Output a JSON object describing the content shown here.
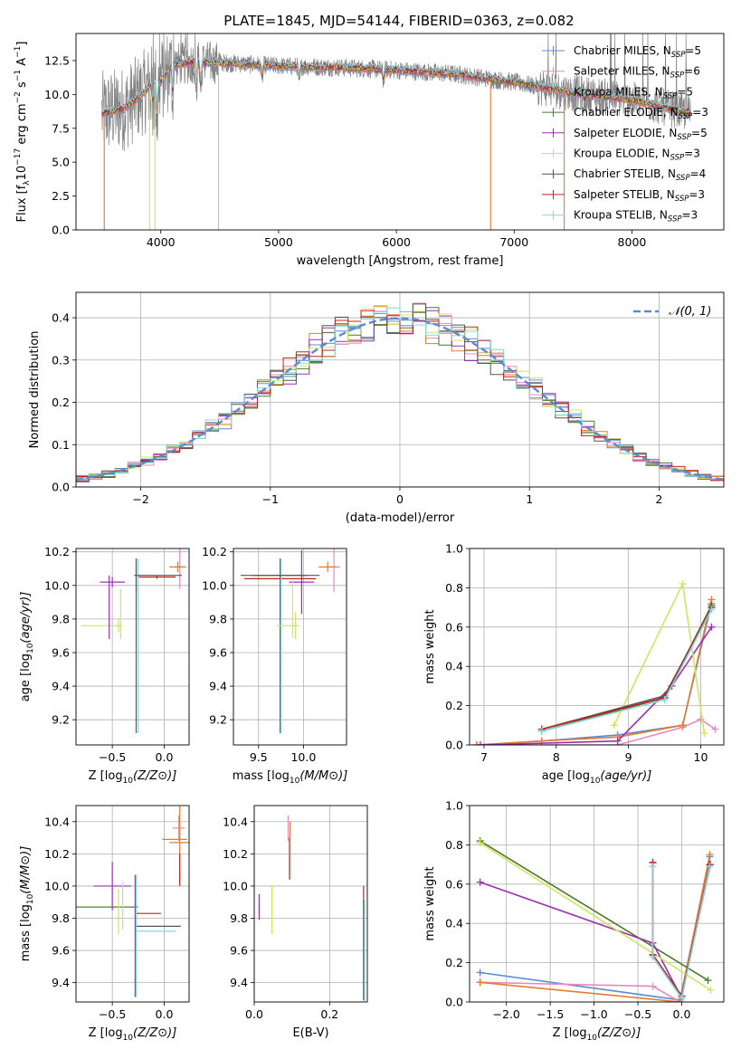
{
  "title": "PLATE=1845, MJD=54144, FIBERID=0363, z=0.082",
  "series": [
    {
      "name": "Chabrier MILES, N$_{SSP}$=5",
      "label": "Chabrier MILES, N",
      "sub": "SSP",
      "n": "=5",
      "color": "#5b8bd0",
      "w": 0.8
    },
    {
      "name": "Salpeter MILES, N$_{SSP}$=6",
      "label": "Salpeter MILES, N",
      "sub": "SSP",
      "n": "=6",
      "color": "#e88ac0",
      "w": 0.8
    },
    {
      "name": "Kroupa MILES, N$_{SSP}$=5",
      "label": "Kroupa MILES, N",
      "sub": "SSP",
      "n": "=5",
      "color": "#e87a2e",
      "w": 0.8
    },
    {
      "name": "Chabrier ELODIE, N$_{SSP}$=3",
      "label": "Chabrier ELODIE, N",
      "sub": "SSP",
      "n": "=3",
      "color": "#4c7a2c",
      "w": 0.8
    },
    {
      "name": "Salpeter ELODIE, N$_{SSP}$=5",
      "label": "Salpeter ELODIE, N",
      "sub": "SSP",
      "n": "=5",
      "color": "#9b2fb0",
      "w": 0.8
    },
    {
      "name": "Kroupa ELODIE, N$_{SSP}$=3",
      "label": "Kroupa ELODIE, N",
      "sub": "SSP",
      "n": "=3",
      "color": "#cde860",
      "w": 0.8
    },
    {
      "name": "Chabrier STELIB, N$_{SSP}$=4",
      "label": "Chabrier STELIB, N",
      "sub": "SSP",
      "n": "=4",
      "color": "#555555",
      "w": 0.8
    },
    {
      "name": "Salpeter STELIB, N$_{SSP}$=3",
      "label": "Salpeter STELIB, N",
      "sub": "SSP",
      "n": "=3",
      "color": "#c0241c",
      "w": 0.8
    },
    {
      "name": "Kroupa STELIB, N$_{SSP}$=3",
      "label": "Kroupa STELIB, N",
      "sub": "SSP",
      "n": "=3",
      "color": "#86d4e0",
      "w": 0.8
    }
  ],
  "chart_data": [
    {
      "type": "line",
      "title": "PLATE=1845, MJD=54144, FIBERID=0363, z=0.082",
      "xlabel": "wavelength [Angstrom, rest frame]",
      "ylabel": "Flux [f",
      "ylabel_full": "Flux [f_λ 10^-17 erg cm^-2 s^-1 A^-1]",
      "xlim": [
        3280,
        8780
      ],
      "ylim": [
        0,
        14.5
      ],
      "xticks": [
        4000,
        5000,
        6000,
        7000,
        8000
      ],
      "yticks": [
        0.0,
        2.5,
        5.0,
        7.5,
        10.0,
        12.5
      ],
      "xtick_labels": [
        "4000",
        "5000",
        "6000",
        "7000",
        "8000"
      ],
      "ytick_labels": [
        "0.0",
        "2.5",
        "5.0",
        "7.5",
        "10.0",
        "12.5"
      ],
      "data_range": [
        3500,
        8500
      ],
      "continuum": [
        [
          3500,
          8.6
        ],
        [
          3700,
          9.0
        ],
        [
          3900,
          10.5
        ],
        [
          4000,
          11.0
        ],
        [
          4100,
          12.2
        ],
        [
          4300,
          12.4
        ],
        [
          4600,
          12.3
        ],
        [
          5000,
          12.1
        ],
        [
          5500,
          12.0
        ],
        [
          6000,
          11.8
        ],
        [
          6500,
          11.5
        ],
        [
          7000,
          10.9
        ],
        [
          7500,
          10.1
        ],
        [
          8000,
          9.6
        ],
        [
          8500,
          8.6
        ]
      ],
      "dips": [
        [
          3934,
          9.2
        ],
        [
          3969,
          8.0
        ],
        [
          4102,
          9.5
        ],
        [
          4300,
          10.0
        ],
        [
          4340,
          10.3
        ],
        [
          4861,
          11.1
        ],
        [
          5175,
          10.9
        ],
        [
          5890,
          10.9
        ],
        [
          6563,
          11.5
        ],
        [
          7600,
          9.5
        ]
      ],
      "legend": "top-right",
      "grid": false
    },
    {
      "type": "line",
      "xlabel": "(data-model)/error",
      "ylabel": "Normed distribution",
      "xlim": [
        -2.5,
        2.5
      ],
      "ylim": [
        0,
        0.46
      ],
      "xticks": [
        -2,
        -1,
        0,
        1,
        2
      ],
      "yticks": [
        0.0,
        0.1,
        0.2,
        0.3,
        0.4
      ],
      "xtick_labels": [
        "−2",
        "−1",
        "0",
        "1",
        "2"
      ],
      "ytick_labels": [
        "0.0",
        "0.1",
        "0.2",
        "0.3",
        "0.4"
      ],
      "bins": 50,
      "gaussian": {
        "name": "N(0,1)",
        "mu": 0,
        "sigma": 1,
        "color": "#5b8bd0"
      },
      "legend": "top-right",
      "grid": true
    },
    {
      "type": "scatter",
      "xlabel": "Z [log",
      "xlabel_full": "Z [log10(Z/Z⊙)]",
      "ylabel": "age  [log",
      "ylabel_full": "age  [log10(age/yr)]",
      "xlim": [
        -0.85,
        0.24
      ],
      "ylim": [
        9.05,
        10.22
      ],
      "xticks": [
        -0.5,
        0.0
      ],
      "yticks": [
        9.2,
        9.4,
        9.6,
        9.8,
        10.0,
        10.2
      ],
      "xtick_labels": [
        "−0.5",
        "0.0"
      ],
      "ytick_labels": [
        "9.2",
        "9.4",
        "9.6",
        "9.8",
        "10.0",
        "10.2"
      ],
      "points": [
        {
          "s": 0,
          "x": -0.27,
          "xe": 0.0,
          "y": 9.76,
          "ye": 0.0
        },
        {
          "s": 1,
          "x": 0.15,
          "xe": 0.05,
          "y": 10.11,
          "ye": 0.13
        },
        {
          "s": 2,
          "x": 0.13,
          "xe": 0.08,
          "y": 10.11,
          "ye": 0.03
        },
        {
          "s": 3,
          "x": -0.27,
          "xe": 0.0,
          "y": 10.06,
          "ye": 0.1
        },
        {
          "s": 4,
          "x": -0.5,
          "xe": 0.12,
          "y": 10.02,
          "ye": 0.03
        },
        {
          "s": 5,
          "x": -0.44,
          "xe": 0.03,
          "y": 9.76,
          "ye": 0.04
        },
        {
          "s": 6,
          "x": -0.27,
          "xe": 0.0,
          "y": 9.64,
          "ye": 0.52
        },
        {
          "s": 7,
          "x": -0.07,
          "xe": 0.18,
          "y": 10.05,
          "ye": 0.01
        },
        {
          "s": 8,
          "x": -0.27,
          "xe": 0.0,
          "y": 9.76,
          "ye": 0.0
        },
        {
          "s": 5,
          "x": -0.6,
          "xe": 0.2,
          "y": 9.76,
          "ye": 0.0
        },
        {
          "s": 4,
          "x": -0.53,
          "xe": 0.0,
          "y": 9.87,
          "ye": 0.19
        },
        {
          "s": 3,
          "x": -0.68,
          "xe": 0.0,
          "y": 9.76,
          "ye": 0.0
        },
        {
          "s": 5,
          "x": -0.42,
          "xe": 0.0,
          "y": 9.83,
          "ye": 0.15
        },
        {
          "s": 8,
          "x": -0.25,
          "xe": 0.0,
          "y": 9.64,
          "ye": 0.52
        },
        {
          "s": 6,
          "x": -0.06,
          "xe": 0.23,
          "y": 10.06,
          "ye": 0.0
        }
      ],
      "grid": true
    },
    {
      "type": "scatter",
      "xlabel": "mass [log",
      "xlabel_full": "mass [log10(M/M⊙)]",
      "ylabel": "",
      "xlim": [
        9.22,
        10.48
      ],
      "ylim": [
        9.05,
        10.22
      ],
      "xticks": [
        9.5,
        10.0
      ],
      "yticks": [
        9.2,
        9.4,
        9.6,
        9.8,
        10.0,
        10.2
      ],
      "xtick_labels": [
        "9.5",
        "10.0"
      ],
      "ytick_labels": [
        "9.2",
        "9.4",
        "9.6",
        "9.8",
        "10.0",
        "10.2"
      ],
      "points": [
        {
          "s": 0,
          "x": 9.74,
          "xe": 0.0,
          "y": 9.64,
          "ye": 0.52
        },
        {
          "s": 1,
          "x": 10.34,
          "xe": 0.07,
          "y": 10.11,
          "ye": 0.15
        },
        {
          "s": 2,
          "x": 10.27,
          "xe": 0.1,
          "y": 10.11,
          "ye": 0.03
        },
        {
          "s": 3,
          "x": 9.74,
          "xe": 0.0,
          "y": 9.64,
          "ye": 0.52
        },
        {
          "s": 4,
          "x": 9.98,
          "xe": 0.02,
          "y": 10.02,
          "ye": 0.19
        },
        {
          "s": 5,
          "x": 9.91,
          "xe": 0.04,
          "y": 9.76,
          "ye": 0.08
        },
        {
          "s": 6,
          "x": 9.74,
          "xe": 0.44,
          "y": 10.06,
          "ye": 0.01
        },
        {
          "s": 7,
          "x": 9.74,
          "xe": 0.4,
          "y": 10.04,
          "ye": 0.0
        },
        {
          "s": 8,
          "x": 9.75,
          "xe": 0.0,
          "y": 9.64,
          "ye": 0.52
        },
        {
          "s": 4,
          "x": 9.98,
          "xe": 0.14,
          "y": 10.02,
          "ye": 0.0
        },
        {
          "s": 5,
          "x": 9.82,
          "xe": 0.12,
          "y": 9.76,
          "ye": 0.0
        },
        {
          "s": 6,
          "x": 9.74,
          "xe": 0.3,
          "y": 10.06,
          "ye": 0.0
        },
        {
          "s": 5,
          "x": 9.88,
          "xe": 0.0,
          "y": 9.86,
          "ye": 0.17
        },
        {
          "s": 3,
          "x": 9.92,
          "xe": 0.0,
          "y": 9.76,
          "ye": 0.0
        }
      ],
      "grid": true
    },
    {
      "type": "line",
      "xlabel": "age  [log",
      "xlabel_full": "age  [log10(age/yr)]",
      "ylabel": "mass weight",
      "xlim": [
        6.8,
        10.32
      ],
      "ylim": [
        0,
        1.0
      ],
      "xticks": [
        7,
        8,
        9,
        10
      ],
      "yticks": [
        0.0,
        0.2,
        0.4,
        0.6,
        0.8,
        1.0
      ],
      "xtick_labels": [
        "7",
        "8",
        "9",
        "10"
      ],
      "ytick_labels": [
        "0.0",
        "0.2",
        "0.4",
        "0.6",
        "0.8",
        "1.0"
      ],
      "lines": [
        {
          "s": 0,
          "x": [
            6.9,
            7.8,
            8.85,
            9.75,
            10.15
          ],
          "y": [
            0.0,
            0.02,
            0.05,
            0.1,
            0.72
          ]
        },
        {
          "s": 1,
          "x": [
            6.9,
            8.85,
            9.75,
            10.0,
            10.2
          ],
          "y": [
            0.0,
            0.0,
            0.09,
            0.13,
            0.08
          ]
        },
        {
          "s": 2,
          "x": [
            6.9,
            7.8,
            8.85,
            9.75,
            10.15
          ],
          "y": [
            0.0,
            0.02,
            0.04,
            0.1,
            0.74
          ]
        },
        {
          "s": 3,
          "x": [
            7.8,
            9.5,
            10.15
          ],
          "y": [
            0.07,
            0.24,
            0.71
          ]
        },
        {
          "s": 4,
          "x": [
            6.95,
            8.85,
            9.6,
            10.15
          ],
          "y": [
            0.0,
            0.02,
            0.3,
            0.6
          ]
        },
        {
          "s": 5,
          "x": [
            8.8,
            9.75,
            10.05
          ],
          "y": [
            0.1,
            0.82,
            0.06
          ]
        },
        {
          "s": 6,
          "x": [
            7.8,
            9.5,
            10.15
          ],
          "y": [
            0.08,
            0.25,
            0.7
          ]
        },
        {
          "s": 7,
          "x": [
            7.8,
            9.5,
            10.15
          ],
          "y": [
            0.08,
            0.24,
            0.7
          ]
        },
        {
          "s": 8,
          "x": [
            7.8,
            9.5,
            10.15
          ],
          "y": [
            0.07,
            0.23,
            0.69
          ]
        }
      ],
      "grid": true
    },
    {
      "type": "scatter",
      "xlabel": "Z [log",
      "xlabel_full": "Z [log10(Z/Z⊙)]",
      "ylabel": "mass [log",
      "ylabel_full": "mass [log10(M/M⊙)]",
      "xlim": [
        -0.85,
        0.24
      ],
      "ylim": [
        9.28,
        10.5
      ],
      "xticks": [
        -0.5,
        0.0
      ],
      "yticks": [
        9.4,
        9.6,
        9.8,
        10.0,
        10.2,
        10.4
      ],
      "xtick_labels": [
        "−0.5",
        "0.0"
      ],
      "ytick_labels": [
        "9.4",
        "9.6",
        "9.8",
        "10.0",
        "10.2",
        "10.4"
      ],
      "points": [
        {
          "s": 0,
          "x": -0.56,
          "xe": 0.29,
          "y": 9.87,
          "ye": 0.0
        },
        {
          "s": 1,
          "x": 0.14,
          "xe": 0.06,
          "y": 10.36,
          "ye": 0.08
        },
        {
          "s": 2,
          "x": 0.15,
          "xe": 0.1,
          "y": 10.27,
          "ye": 0.25
        },
        {
          "s": 3,
          "x": -0.55,
          "xe": 0.3,
          "y": 9.87,
          "ye": 0.0
        },
        {
          "s": 4,
          "x": -0.5,
          "xe": 0.18,
          "y": 10.0,
          "ye": 0.15
        },
        {
          "s": 5,
          "x": -0.44,
          "xe": 0.0,
          "y": 9.84,
          "ye": 0.14
        },
        {
          "s": 6,
          "x": -0.06,
          "xe": 0.22,
          "y": 9.75,
          "ye": 0.0
        },
        {
          "s": 7,
          "x": -0.15,
          "xe": 0.12,
          "y": 9.83,
          "ye": 0.0
        },
        {
          "s": 8,
          "x": -0.08,
          "xe": 0.19,
          "y": 9.72,
          "ye": 0.0
        },
        {
          "s": 4,
          "x": -0.28,
          "xe": 0.0,
          "y": 9.69,
          "ye": 0.38
        },
        {
          "s": 8,
          "x": -0.27,
          "xe": 0.0,
          "y": 9.69,
          "ye": 0.38
        },
        {
          "s": 2,
          "x": 0.1,
          "xe": 0.12,
          "y": 10.29,
          "ye": 0.0
        },
        {
          "s": 5,
          "x": -0.4,
          "xe": 0.0,
          "y": 9.88,
          "ye": 0.15
        },
        {
          "s": 7,
          "x": 0.15,
          "xe": 0.0,
          "y": 10.1,
          "ye": 0.1
        }
      ],
      "grid": true
    },
    {
      "type": "scatter",
      "xlabel": "E(B-V)",
      "ylabel": "",
      "xlim": [
        0.0,
        0.3
      ],
      "ylim": [
        9.28,
        10.5
      ],
      "xticks": [
        0.0,
        0.2
      ],
      "yticks": [
        9.4,
        9.6,
        9.8,
        10.0,
        10.2,
        10.4
      ],
      "xtick_labels": [
        "0.0",
        "0.2"
      ],
      "ytick_labels": [
        "9.4",
        "9.6",
        "9.8",
        "10.0",
        "10.2",
        "10.4"
      ],
      "points": [
        {
          "s": 4,
          "x": 0.013,
          "xe": 0.0,
          "y": 9.87,
          "ye": 0.08
        },
        {
          "s": 5,
          "x": 0.047,
          "xe": 0.0,
          "y": 9.85,
          "ye": 0.15
        },
        {
          "s": 1,
          "x": 0.09,
          "xe": 0.0,
          "y": 10.36,
          "ye": 0.08
        },
        {
          "s": 2,
          "x": 0.095,
          "xe": 0.0,
          "y": 10.22,
          "ye": 0.18
        },
        {
          "s": 0,
          "x": 0.093,
          "xe": 0.0,
          "y": 10.17,
          "ye": 0.13
        },
        {
          "s": 7,
          "x": 0.29,
          "xe": 0.0,
          "y": 9.95,
          "ye": 0.05
        },
        {
          "s": 8,
          "x": 0.292,
          "xe": 0.0,
          "y": 9.6,
          "ye": 0.32
        },
        {
          "s": 6,
          "x": 0.29,
          "xe": 0.0,
          "y": 9.6,
          "ye": 0.31
        }
      ],
      "grid": true
    },
    {
      "type": "line",
      "xlabel": "Z [log",
      "xlabel_full": "Z [log10(Z/Z⊙)]",
      "ylabel": "mass weight",
      "xlim": [
        -2.42,
        0.48
      ],
      "ylim": [
        0,
        1.0
      ],
      "xticks": [
        -2.0,
        -1.5,
        -1.0,
        -0.5,
        0.0
      ],
      "yticks": [
        0.0,
        0.2,
        0.4,
        0.6,
        0.8,
        1.0
      ],
      "xtick_labels": [
        "−2.0",
        "−1.5",
        "−1.0",
        "−0.5",
        "0.0"
      ],
      "ytick_labels": [
        "0.0",
        "0.2",
        "0.4",
        "0.6",
        "0.8",
        "1.0"
      ],
      "lines": [
        {
          "s": 0,
          "x": [
            -2.3,
            -0.02,
            0.32
          ],
          "y": [
            0.15,
            0.01,
            0.74
          ]
        },
        {
          "s": 1,
          "x": [
            -2.3,
            -0.33,
            -0.02,
            0.33
          ],
          "y": [
            0.1,
            0.08,
            0.0,
            0.7
          ]
        },
        {
          "s": 2,
          "x": [
            -2.3,
            -0.02,
            0.32
          ],
          "y": [
            0.1,
            0.0,
            0.75
          ]
        },
        {
          "s": 3,
          "x": [
            -2.3,
            0.3
          ],
          "y": [
            0.82,
            0.11
          ]
        },
        {
          "s": 4,
          "x": [
            -2.3,
            -0.33,
            0.0
          ],
          "y": [
            0.61,
            0.3,
            0.02
          ]
        },
        {
          "s": 5,
          "x": [
            -2.3,
            0.33
          ],
          "y": [
            0.81,
            0.06
          ]
        },
        {
          "s": 6,
          "x": [
            -0.33,
            -0.33,
            0.0,
            0.32
          ],
          "y": [
            0.71,
            0.24,
            0.03,
            0.7
          ]
        },
        {
          "s": 7,
          "x": [
            -0.33,
            -0.33,
            0.0,
            0.32
          ],
          "y": [
            0.71,
            0.24,
            0.03,
            0.7
          ]
        },
        {
          "s": 8,
          "x": [
            -0.33,
            -0.33,
            0.0,
            0.32
          ],
          "y": [
            0.69,
            0.23,
            0.02,
            0.69
          ]
        }
      ],
      "grid": true
    }
  ]
}
